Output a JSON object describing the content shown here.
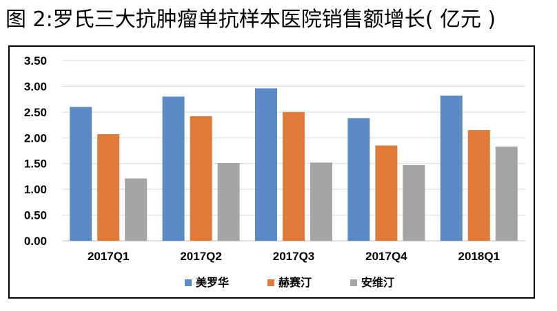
{
  "figure": {
    "title": "图 2:罗氏三大抗肿瘤单抗样本医院销售额增长( 亿元 )"
  },
  "chart_data": {
    "type": "bar",
    "categories": [
      "2017Q1",
      "2017Q2",
      "2017Q3",
      "2017Q4",
      "2018Q1"
    ],
    "series": [
      {
        "name": "美罗华",
        "color": "#5B8AC4",
        "values": [
          2.6,
          2.8,
          2.96,
          2.38,
          2.82
        ]
      },
      {
        "name": "赫赛汀",
        "color": "#E07B39",
        "values": [
          2.07,
          2.42,
          2.5,
          1.85,
          2.15
        ]
      },
      {
        "name": "安维汀",
        "color": "#A5A5A5",
        "values": [
          1.21,
          1.51,
          1.52,
          1.47,
          1.83
        ]
      }
    ],
    "yticks": [
      "0.00",
      "0.50",
      "1.00",
      "1.50",
      "2.00",
      "2.50",
      "3.00",
      "3.50"
    ],
    "ylim": [
      0,
      3.5
    ],
    "grid": true,
    "legend_position": "bottom"
  }
}
